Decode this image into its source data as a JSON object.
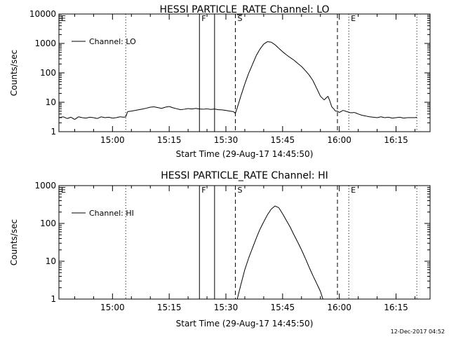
{
  "footer_timestamp": "12-Dec-2017 04:52",
  "chart_data": [
    {
      "type": "line",
      "title": "HESSI PARTICLE_RATE Channel: LO",
      "xlabel": "Start Time (29-Aug-17 14:45:50)",
      "ylabel": "Counts/sec",
      "yscale": "log",
      "xlim": [
        "14:45:50",
        "16:24:00"
      ],
      "ylim": [
        1,
        10000
      ],
      "xtick_labels": [
        "15:00",
        "15:15",
        "15:30",
        "15:45",
        "16:00",
        "16:15"
      ],
      "ytick_labels": [
        "1",
        "10",
        "100",
        "1000",
        "10000"
      ],
      "legend": "Channel: LO",
      "markers": [
        {
          "label": "E",
          "time": "14:45:50",
          "style": "dotted"
        },
        {
          "label": "",
          "time": "15:03:30",
          "style": "dotted"
        },
        {
          "label": "F",
          "time": "15:23:00",
          "style": "solid"
        },
        {
          "label": "",
          "time": "15:27:00",
          "style": "solid"
        },
        {
          "label": "S",
          "time": "15:32:30",
          "style": "dashed"
        },
        {
          "label": "",
          "time": "15:59:30",
          "style": "dashed"
        },
        {
          "label": "E",
          "time": "16:02:30",
          "style": "dotted"
        },
        {
          "label": "",
          "time": "16:20:30",
          "style": "dotted"
        }
      ],
      "series": [
        {
          "name": "Channel: LO",
          "x": [
            "14:45:50",
            "14:47:00",
            "14:48:00",
            "14:49:00",
            "14:50:00",
            "14:51:00",
            "14:52:00",
            "14:53:00",
            "14:54:00",
            "14:55:00",
            "14:56:00",
            "14:57:00",
            "14:58:00",
            "14:59:00",
            "15:00:00",
            "15:01:00",
            "15:02:00",
            "15:03:00",
            "15:03:30",
            "15:04:00",
            "15:05:00",
            "15:06:00",
            "15:07:00",
            "15:08:00",
            "15:09:00",
            "15:10:00",
            "15:11:00",
            "15:12:00",
            "15:13:00",
            "15:14:00",
            "15:15:00",
            "15:16:00",
            "15:17:00",
            "15:18:00",
            "15:19:00",
            "15:20:00",
            "15:21:00",
            "15:22:00",
            "15:23:00",
            "15:24:00",
            "15:25:00",
            "15:26:00",
            "15:27:00",
            "15:28:00",
            "15:29:00",
            "15:30:00",
            "15:31:00",
            "15:32:00",
            "15:32:30",
            "15:33:00",
            "15:34:00",
            "15:35:00",
            "15:36:00",
            "15:37:00",
            "15:38:00",
            "15:39:00",
            "15:40:00",
            "15:41:00",
            "15:42:00",
            "15:43:00",
            "15:44:00",
            "15:45:00",
            "15:46:00",
            "15:47:00",
            "15:48:00",
            "15:49:00",
            "15:50:00",
            "15:51:00",
            "15:52:00",
            "15:53:00",
            "15:54:00",
            "15:55:00",
            "15:56:00",
            "15:56:30",
            "15:57:00",
            "15:57:30",
            "15:58:00",
            "15:58:30",
            "15:59:00",
            "15:59:30",
            "16:00:00",
            "16:01:00",
            "16:02:00",
            "16:03:00",
            "16:04:00",
            "16:05:00",
            "16:06:00",
            "16:07:00",
            "16:08:00",
            "16:09:00",
            "16:10:00",
            "16:11:00",
            "16:12:00",
            "16:13:00",
            "16:14:00",
            "16:15:00",
            "16:16:00",
            "16:17:00",
            "16:18:00",
            "16:19:00",
            "16:20:00",
            "16:20:30"
          ],
          "y": [
            3,
            3.2,
            2.8,
            3.1,
            2.6,
            3.2,
            3.0,
            2.9,
            3.1,
            3.0,
            2.8,
            3.2,
            3.0,
            3.1,
            2.9,
            3.0,
            3.2,
            3.1,
            3.2,
            4.8,
            5.0,
            5.3,
            5.6,
            5.9,
            6.3,
            6.8,
            7.0,
            6.6,
            6.2,
            6.8,
            7.2,
            6.5,
            6.0,
            5.6,
            5.8,
            6.1,
            5.9,
            6.2,
            5.9,
            5.8,
            6.0,
            5.7,
            5.9,
            5.6,
            5.5,
            5.3,
            5.0,
            4.8,
            4.2,
            6.5,
            17,
            42,
            95,
            190,
            380,
            640,
            950,
            1150,
            1100,
            900,
            680,
            520,
            410,
            330,
            270,
            210,
            165,
            120,
            85,
            55,
            30,
            16,
            12,
            14,
            16,
            11,
            7,
            6,
            5,
            5,
            4.5,
            5.3,
            4.8,
            4.4,
            4.5,
            4.0,
            3.6,
            3.4,
            3.2,
            3.1,
            3.0,
            3.2,
            3.0,
            3.1,
            2.9,
            3.0,
            3.1,
            2.9,
            3.0,
            3.0,
            3.0,
            3.1
          ]
        }
      ]
    },
    {
      "type": "line",
      "title": "HESSI PARTICLE_RATE Channel: HI",
      "xlabel": "Start Time (29-Aug-17 14:45:50)",
      "ylabel": "Counts/sec",
      "yscale": "log",
      "xlim": [
        "14:45:50",
        "16:24:00"
      ],
      "ylim": [
        1,
        1000
      ],
      "xtick_labels": [
        "15:00",
        "15:15",
        "15:30",
        "15:45",
        "16:00",
        "16:15"
      ],
      "ytick_labels": [
        "1",
        "10",
        "100",
        "1000"
      ],
      "legend": "Channel: HI",
      "markers": [
        {
          "label": "E",
          "time": "14:45:50",
          "style": "dotted"
        },
        {
          "label": "",
          "time": "15:03:30",
          "style": "dotted"
        },
        {
          "label": "F",
          "time": "15:23:00",
          "style": "solid"
        },
        {
          "label": "",
          "time": "15:27:00",
          "style": "solid"
        },
        {
          "label": "S",
          "time": "15:32:30",
          "style": "dashed"
        },
        {
          "label": "",
          "time": "15:59:30",
          "style": "dashed"
        },
        {
          "label": "E",
          "time": "16:02:30",
          "style": "dotted"
        },
        {
          "label": "",
          "time": "16:20:30",
          "style": "dotted"
        }
      ],
      "series": [
        {
          "name": "Channel: HI",
          "x": [
            "15:33:00",
            "15:34:00",
            "15:35:00",
            "15:36:00",
            "15:37:00",
            "15:38:00",
            "15:39:00",
            "15:40:00",
            "15:41:00",
            "15:42:00",
            "15:43:00",
            "15:44:00",
            "15:45:00",
            "15:46:00",
            "15:47:00",
            "15:48:00",
            "15:49:00",
            "15:50:00",
            "15:51:00",
            "15:52:00",
            "15:53:00",
            "15:54:00",
            "15:55:00",
            "15:55:40"
          ],
          "y": [
            1,
            2.5,
            6,
            12,
            22,
            40,
            70,
            110,
            170,
            240,
            290,
            260,
            180,
            120,
            80,
            50,
            32,
            20,
            12,
            7,
            4.2,
            2.6,
            1.6,
            1
          ]
        }
      ]
    }
  ]
}
